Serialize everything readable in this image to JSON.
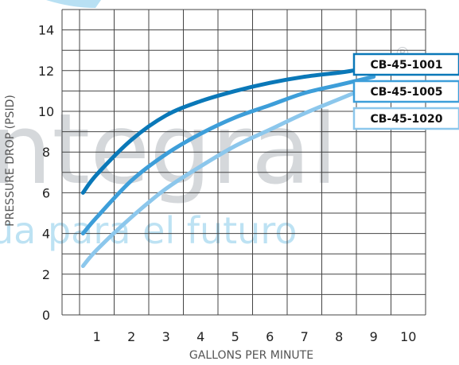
{
  "chart_data": {
    "type": "line",
    "xlabel": "GALLONS PER MINUTE",
    "ylabel": "PRESSURE DROP (PSID)",
    "xlim": [
      0,
      10
    ],
    "ylim": [
      0,
      14
    ],
    "x_ticks": [
      "1",
      "2",
      "3",
      "4",
      "5",
      "6",
      "7",
      "8",
      "9",
      "10"
    ],
    "y_ticks": [
      "0",
      "2",
      "4",
      "6",
      "8",
      "10",
      "12",
      "14"
    ],
    "grid": true,
    "legend_placement": "right",
    "series": [
      {
        "name": "CB-45-1001",
        "color": "#0a78b8",
        "x": [
          0.6,
          1,
          2,
          3,
          4,
          5,
          6,
          7,
          8,
          8.4
        ],
        "y": [
          6.0,
          6.9,
          8.6,
          9.8,
          10.5,
          11.0,
          11.4,
          11.7,
          11.9,
          12.0
        ]
      },
      {
        "name": "CB-45-1005",
        "color": "#3d9ed9",
        "x": [
          0.6,
          1,
          2,
          3,
          4,
          5,
          6,
          7,
          8,
          9
        ],
        "y": [
          4.0,
          4.8,
          6.6,
          7.9,
          8.9,
          9.7,
          10.3,
          10.9,
          11.3,
          11.7
        ]
      },
      {
        "name": "CB-45-1020",
        "color": "#8cc7ec",
        "x": [
          0.6,
          1,
          2,
          3,
          4,
          5,
          6,
          7,
          8,
          9
        ],
        "y": [
          2.4,
          3.2,
          4.8,
          6.2,
          7.3,
          8.3,
          9.1,
          9.9,
          10.6,
          11.3
        ]
      }
    ]
  },
  "watermark": {
    "main_text": "ntegral",
    "sub_text": "ua para el futuro",
    "registered": "®"
  }
}
